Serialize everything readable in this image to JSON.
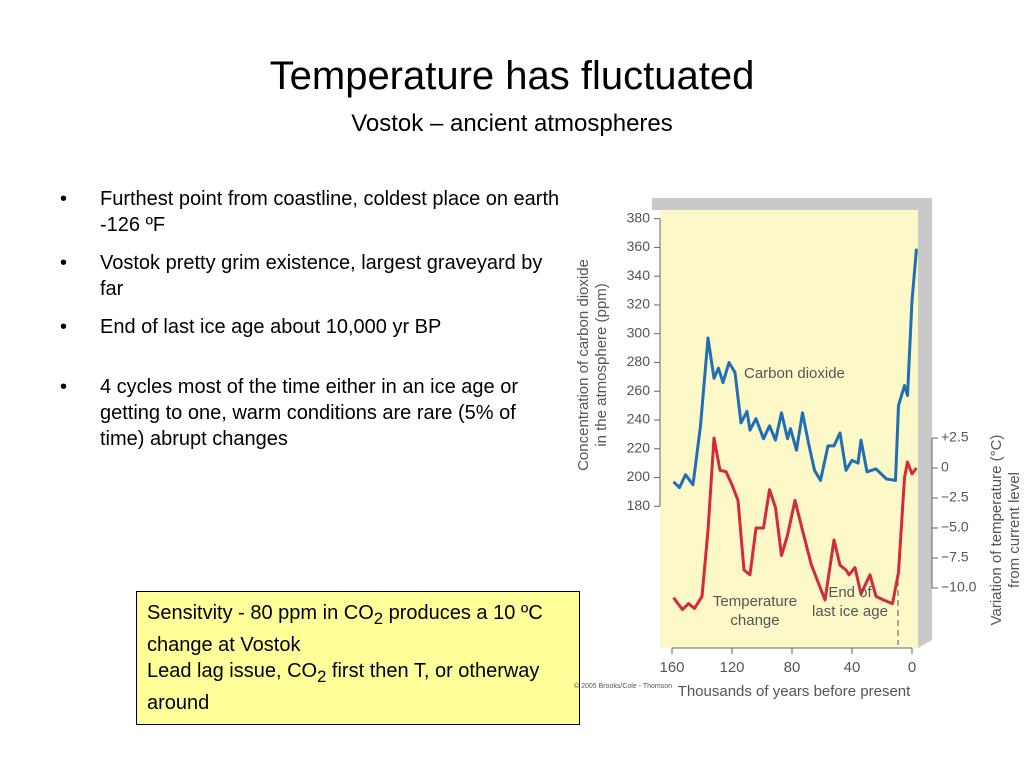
{
  "title": "Temperature has fluctuated",
  "subtitle": "Vostok – ancient atmospheres",
  "bullets": [
    "Furthest point from coastline, coldest place on earth -126 ºF",
    "Vostok pretty grim existence, largest graveyard by far",
    "End of last ice age about 10,000 yr BP",
    "4 cycles most of the time either in an ice age or getting to one, warm conditions are rare (5% of time) abrupt changes"
  ],
  "callout": {
    "line1": [
      "Sensitvity - 80 ppm in CO",
      "2",
      " produces a 10 ºC change at Vostok"
    ],
    "line2": [
      "Lead lag issue, CO",
      "2",
      " first then T, or otherway around"
    ]
  },
  "chart_data": {
    "type": "line",
    "x_label": "Thousands of years before present",
    "y_label": [
      "Concentration of carbon dioxide",
      "in the atmosphere (ppm)"
    ],
    "y2_label": [
      "Variation of temperature (°C)",
      "from current level"
    ],
    "annotations": {
      "co2": "Carbon dioxide",
      "temp": [
        "Temperature",
        "change"
      ],
      "ice": [
        "End of",
        "last ice age"
      ]
    },
    "credit": "© 2005 Brooks/Cole - Thomson",
    "xlim": [
      168,
      -4
    ],
    "xticks": [
      160,
      120,
      80,
      40,
      0
    ],
    "ylim": [
      94,
      386
    ],
    "yticks": [
      180,
      200,
      220,
      240,
      260,
      280,
      300,
      320,
      340,
      360,
      380
    ],
    "y2lim": [
      -13.5,
      21.5
    ],
    "y2ticks": [
      {
        "value": 2.5,
        "label": "+2.5"
      },
      0,
      {
        "value": -2.5,
        "label": "−2.5"
      },
      {
        "value": -5,
        "label": "−5.0"
      },
      {
        "value": -7.5,
        "label": "−7.5"
      },
      {
        "value": -10,
        "label": "−10.0"
      }
    ],
    "series": [
      {
        "name": "Carbon dioxide",
        "color": "#1f6fb5",
        "x": [
          159,
          155,
          151,
          146,
          141,
          136,
          132,
          129,
          126,
          122,
          118,
          114,
          110,
          108,
          104,
          99,
          95,
          91,
          87,
          83,
          81,
          77,
          73,
          69,
          65,
          61,
          56,
          52,
          48,
          44,
          40,
          36,
          34,
          30,
          24,
          17,
          11,
          9,
          5,
          3,
          0,
          -3
        ],
        "values": [
          197,
          193,
          202,
          195,
          236,
          297,
          269,
          276,
          266,
          280,
          273,
          238,
          246,
          233,
          241,
          227,
          236,
          226,
          245,
          227,
          234,
          219,
          245,
          224,
          205,
          198,
          222,
          222,
          231,
          205,
          212,
          210,
          226,
          204,
          206,
          199,
          198,
          250,
          264,
          257,
          323,
          359
        ]
      },
      {
        "name": "Temperature change",
        "color": "#d42a3a",
        "axis": "y2",
        "x": [
          159,
          153,
          149,
          145,
          140,
          136,
          132,
          128,
          124,
          120,
          116,
          112,
          108,
          104,
          99,
          95,
          91,
          87,
          83,
          78,
          73,
          67,
          58,
          52,
          48,
          44,
          42,
          38,
          34,
          28,
          24,
          19,
          13,
          9,
          5,
          3,
          0,
          -3
        ],
        "values": [
          -10.8,
          -11.8,
          -11.3,
          -11.7,
          -10.7,
          -5.2,
          2.5,
          -0.2,
          -0.3,
          -1.4,
          -2.7,
          -8.5,
          -8.9,
          -5.0,
          -5.0,
          -1.8,
          -3.3,
          -7.3,
          -5.6,
          -2.7,
          -5.2,
          -8.1,
          -11.0,
          -6.0,
          -8.1,
          -8.5,
          -8.9,
          -8.3,
          -10.5,
          -8.9,
          -10.7,
          -11.0,
          -11.3,
          -8.7,
          -0.8,
          0.5,
          -0.5,
          0
        ]
      }
    ]
  }
}
